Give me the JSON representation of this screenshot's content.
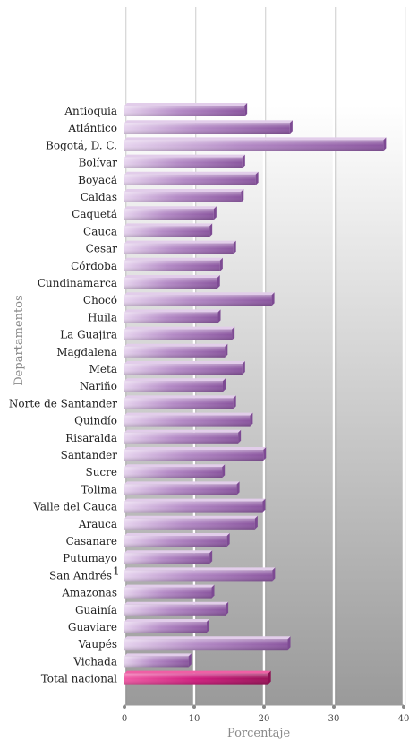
{
  "chart_data": {
    "type": "bar",
    "orientation": "horizontal",
    "xlabel": "Porcentaje",
    "ylabel": "Departamentos",
    "xlim": [
      0,
      40
    ],
    "xticks": [
      "0",
      "10",
      "20",
      "30",
      "40"
    ],
    "grid": true,
    "categories": [
      "Antioquia",
      "Atlántico",
      "Bogotá, D. C.",
      "Bolívar",
      "Boyacá",
      "Caldas",
      "Caquetá",
      "Cauca",
      "Cesar",
      "Córdoba",
      "Cundinamarca",
      "Chocó",
      "Huila",
      "La Guajira",
      "Magdalena",
      "Meta",
      "Nariño",
      "Norte de Santander",
      "Quindío",
      "Risaralda",
      "Santander",
      "Sucre",
      "Tolima",
      "Valle del Cauca",
      "Arauca",
      "Casanare",
      "Putumayo",
      "San Andrés",
      "Amazonas",
      "Guainía",
      "Guaviare",
      "Vaupés",
      "Vichada",
      "Total nacional"
    ],
    "footnote_marks": {
      "San Andrés": "1"
    },
    "values": [
      17.2,
      23.7,
      37.1,
      16.9,
      18.8,
      16.7,
      12.8,
      12.2,
      15.6,
      13.7,
      13.3,
      21.1,
      13.4,
      15.4,
      14.4,
      16.9,
      14.1,
      15.6,
      18.0,
      16.3,
      19.9,
      14.0,
      16.1,
      19.8,
      18.7,
      14.7,
      12.2,
      21.2,
      12.5,
      14.5,
      11.8,
      23.4,
      9.2,
      20.6
    ],
    "highlight_category": "Total nacional",
    "colors": {
      "bar_light": "#e2cdea",
      "bar_mid": "#a57ab8",
      "bar_dark": "#7d4a93",
      "highlight_light": "#ef5fa5",
      "highlight_mid": "#d01c7e",
      "highlight_dark": "#8e0f52",
      "plot_top": "#ffffff",
      "plot_bottom": "#9a9a9a",
      "gridline": "#ffffff"
    }
  }
}
